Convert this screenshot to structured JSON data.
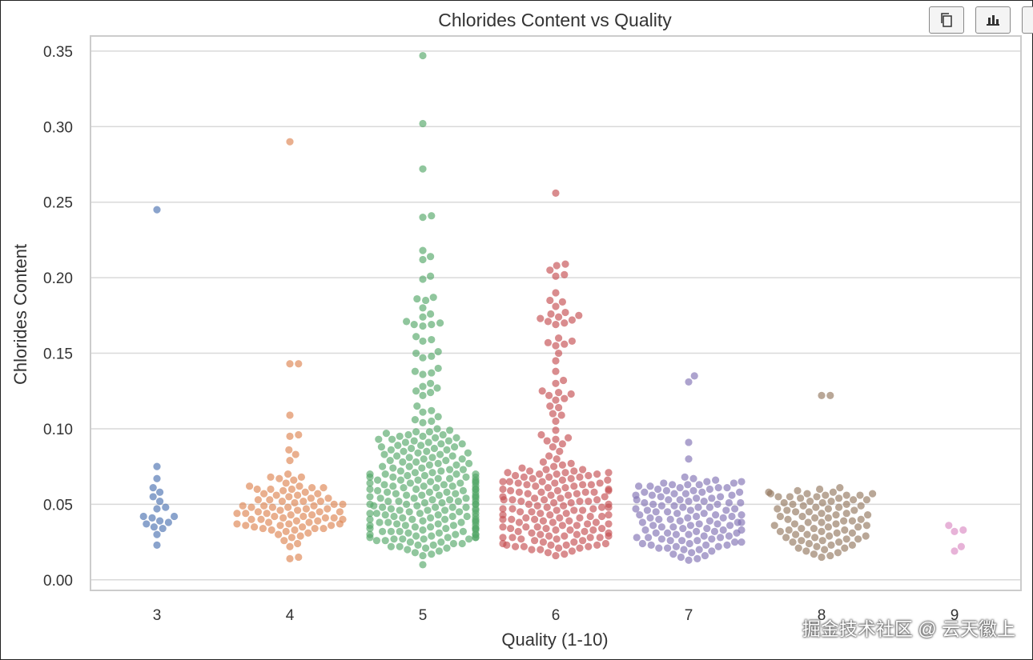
{
  "chart_data": {
    "type": "scatter",
    "subtype": "swarm",
    "title": "Chlorides Content vs Quality",
    "xlabel": "Quality (1-10)",
    "ylabel": "Chlorides Content",
    "categories": [
      "3",
      "4",
      "5",
      "6",
      "7",
      "8",
      "9"
    ],
    "ylim": [
      -0.007,
      0.36
    ],
    "yticks": [
      "0.00",
      "0.05",
      "0.10",
      "0.15",
      "0.20",
      "0.25",
      "0.30",
      "0.35"
    ],
    "grid": true,
    "legend": "none",
    "series": [
      {
        "name": "3",
        "color": "#4c72b0",
        "values": [
          0.245,
          0.075,
          0.067,
          0.061,
          0.058,
          0.055,
          0.052,
          0.048,
          0.047,
          0.042,
          0.042,
          0.041,
          0.039,
          0.038,
          0.037,
          0.035,
          0.034,
          0.03,
          0.023
        ]
      },
      {
        "name": "4",
        "color": "#dd8452",
        "values": [
          0.29,
          0.143,
          0.143,
          0.109,
          0.096,
          0.095,
          0.086,
          0.083,
          0.079,
          0.07,
          0.068,
          0.068,
          0.067,
          0.066,
          0.064,
          0.062,
          0.061,
          0.06,
          0.06,
          0.06,
          0.059,
          0.058,
          0.057,
          0.056,
          0.055,
          0.054,
          0.054,
          0.053,
          0.052,
          0.052,
          0.051,
          0.05,
          0.05,
          0.049,
          0.049,
          0.048,
          0.048,
          0.047,
          0.047,
          0.046,
          0.046,
          0.045,
          0.045,
          0.044,
          0.044,
          0.043,
          0.043,
          0.042,
          0.042,
          0.041,
          0.041,
          0.04,
          0.04,
          0.039,
          0.039,
          0.038,
          0.038,
          0.037,
          0.037,
          0.036,
          0.036,
          0.035,
          0.035,
          0.034,
          0.034,
          0.033,
          0.033,
          0.032,
          0.031,
          0.03,
          0.029,
          0.028,
          0.026,
          0.024,
          0.022,
          0.015,
          0.014,
          0.062,
          0.057,
          0.053,
          0.049,
          0.045,
          0.041,
          0.037,
          0.034,
          0.061,
          0.056,
          0.052,
          0.048,
          0.044,
          0.04,
          0.036
        ]
      },
      {
        "name": "5",
        "color": "#55a868",
        "values": [
          0.347,
          0.302,
          0.272,
          0.241,
          0.24,
          0.218,
          0.214,
          0.212,
          0.201,
          0.199,
          0.187,
          0.186,
          0.185,
          0.18,
          0.176,
          0.174,
          0.171,
          0.17,
          0.169,
          0.169,
          0.168,
          0.161,
          0.159,
          0.158,
          0.151,
          0.15,
          0.148,
          0.147,
          0.14,
          0.138,
          0.137,
          0.136,
          0.13,
          0.128,
          0.127,
          0.125,
          0.124,
          0.122,
          0.115,
          0.112,
          0.111,
          0.108,
          0.106,
          0.105,
          0.104,
          0.1,
          0.099,
          0.098,
          0.098,
          0.097,
          0.096,
          0.096,
          0.095,
          0.095,
          0.094,
          0.094,
          0.093,
          0.093,
          0.092,
          0.092,
          0.091,
          0.091,
          0.09,
          0.09,
          0.089,
          0.089,
          0.088,
          0.088,
          0.087,
          0.087,
          0.086,
          0.086,
          0.085,
          0.085,
          0.084,
          0.084,
          0.083,
          0.083,
          0.082,
          0.082,
          0.081,
          0.081,
          0.08,
          0.08,
          0.079,
          0.079,
          0.078,
          0.078,
          0.077,
          0.077,
          0.076,
          0.076,
          0.075,
          0.075,
          0.074,
          0.074,
          0.073,
          0.073,
          0.072,
          0.072,
          0.071,
          0.071,
          0.07,
          0.07,
          0.069,
          0.069,
          0.068,
          0.068,
          0.067,
          0.067,
          0.066,
          0.066,
          0.065,
          0.065,
          0.064,
          0.064,
          0.063,
          0.063,
          0.062,
          0.062,
          0.061,
          0.061,
          0.06,
          0.06,
          0.059,
          0.059,
          0.058,
          0.058,
          0.057,
          0.057,
          0.056,
          0.056,
          0.055,
          0.055,
          0.054,
          0.054,
          0.053,
          0.053,
          0.052,
          0.052,
          0.051,
          0.051,
          0.05,
          0.05,
          0.049,
          0.049,
          0.048,
          0.048,
          0.047,
          0.047,
          0.046,
          0.046,
          0.045,
          0.045,
          0.044,
          0.044,
          0.043,
          0.043,
          0.042,
          0.042,
          0.041,
          0.041,
          0.04,
          0.04,
          0.039,
          0.039,
          0.038,
          0.038,
          0.037,
          0.037,
          0.036,
          0.036,
          0.035,
          0.035,
          0.034,
          0.034,
          0.033,
          0.033,
          0.032,
          0.032,
          0.031,
          0.031,
          0.03,
          0.03,
          0.029,
          0.029,
          0.028,
          0.028,
          0.027,
          0.027,
          0.026,
          0.026,
          0.025,
          0.025,
          0.024,
          0.024,
          0.023,
          0.023,
          0.022,
          0.022,
          0.021,
          0.021,
          0.02,
          0.019,
          0.018,
          0.017,
          0.016,
          0.01,
          0.07,
          0.066,
          0.062,
          0.058,
          0.054,
          0.05,
          0.046,
          0.042,
          0.038,
          0.034,
          0.03,
          0.027,
          0.068,
          0.064,
          0.06,
          0.056,
          0.052,
          0.048,
          0.044,
          0.04,
          0.036,
          0.032,
          0.028,
          0.07,
          0.066,
          0.062,
          0.058,
          0.054,
          0.05,
          0.046,
          0.042,
          0.038,
          0.034,
          0.03,
          0.027,
          0.068,
          0.064,
          0.06,
          0.056,
          0.052,
          0.048,
          0.044,
          0.04,
          0.036,
          0.032,
          0.028
        ]
      },
      {
        "name": "6",
        "color": "#c44e52",
        "values": [
          0.256,
          0.209,
          0.208,
          0.205,
          0.202,
          0.201,
          0.19,
          0.185,
          0.184,
          0.181,
          0.177,
          0.176,
          0.175,
          0.174,
          0.173,
          0.172,
          0.171,
          0.17,
          0.169,
          0.16,
          0.158,
          0.157,
          0.156,
          0.155,
          0.15,
          0.145,
          0.138,
          0.132,
          0.13,
          0.125,
          0.124,
          0.123,
          0.122,
          0.12,
          0.119,
          0.115,
          0.114,
          0.11,
          0.109,
          0.105,
          0.099,
          0.096,
          0.094,
          0.093,
          0.092,
          0.09,
          0.088,
          0.085,
          0.082,
          0.08,
          0.078,
          0.077,
          0.076,
          0.075,
          0.074,
          0.073,
          0.072,
          0.071,
          0.07,
          0.069,
          0.068,
          0.067,
          0.066,
          0.065,
          0.064,
          0.063,
          0.062,
          0.061,
          0.06,
          0.059,
          0.058,
          0.057,
          0.056,
          0.055,
          0.054,
          0.053,
          0.052,
          0.051,
          0.05,
          0.049,
          0.048,
          0.047,
          0.046,
          0.045,
          0.044,
          0.043,
          0.042,
          0.041,
          0.04,
          0.039,
          0.038,
          0.037,
          0.036,
          0.035,
          0.034,
          0.033,
          0.032,
          0.031,
          0.03,
          0.029,
          0.028,
          0.027,
          0.026,
          0.025,
          0.024,
          0.023,
          0.022,
          0.021,
          0.02,
          0.019,
          0.018,
          0.017,
          0.016,
          0.072,
          0.068,
          0.064,
          0.06,
          0.056,
          0.052,
          0.048,
          0.044,
          0.04,
          0.036,
          0.032,
          0.028,
          0.024,
          0.02,
          0.07,
          0.066,
          0.062,
          0.058,
          0.054,
          0.05,
          0.046,
          0.042,
          0.038,
          0.034,
          0.03,
          0.026,
          0.022,
          0.071,
          0.067,
          0.063,
          0.059,
          0.055,
          0.051,
          0.047,
          0.043,
          0.039,
          0.035,
          0.031,
          0.027,
          0.023,
          0.069,
          0.065,
          0.061,
          0.057,
          0.053,
          0.049,
          0.045,
          0.041,
          0.037,
          0.033,
          0.029,
          0.025,
          0.021,
          0.073,
          0.068,
          0.063,
          0.058,
          0.053,
          0.048,
          0.043,
          0.038,
          0.033,
          0.028,
          0.023,
          0.07,
          0.064,
          0.058,
          0.052,
          0.046,
          0.04,
          0.034,
          0.028,
          0.022,
          0.071,
          0.065,
          0.059,
          0.053,
          0.047,
          0.041,
          0.035,
          0.029,
          0.023
        ]
      },
      {
        "name": "7",
        "color": "#8172b3",
        "values": [
          0.135,
          0.131,
          0.091,
          0.08,
          0.068,
          0.067,
          0.066,
          0.065,
          0.064,
          0.063,
          0.062,
          0.061,
          0.06,
          0.059,
          0.058,
          0.057,
          0.056,
          0.055,
          0.054,
          0.053,
          0.052,
          0.051,
          0.05,
          0.049,
          0.048,
          0.047,
          0.046,
          0.045,
          0.044,
          0.043,
          0.042,
          0.041,
          0.04,
          0.039,
          0.038,
          0.037,
          0.036,
          0.035,
          0.034,
          0.033,
          0.032,
          0.031,
          0.03,
          0.029,
          0.028,
          0.027,
          0.026,
          0.025,
          0.024,
          0.023,
          0.022,
          0.021,
          0.02,
          0.019,
          0.018,
          0.017,
          0.016,
          0.015,
          0.014,
          0.013,
          0.065,
          0.061,
          0.057,
          0.053,
          0.049,
          0.045,
          0.041,
          0.037,
          0.033,
          0.029,
          0.025,
          0.021,
          0.063,
          0.059,
          0.055,
          0.051,
          0.047,
          0.043,
          0.039,
          0.035,
          0.031,
          0.027,
          0.023,
          0.064,
          0.06,
          0.056,
          0.052,
          0.048,
          0.044,
          0.04,
          0.036,
          0.032,
          0.028,
          0.024,
          0.02,
          0.062,
          0.058,
          0.054,
          0.05,
          0.046,
          0.042,
          0.038,
          0.034,
          0.03,
          0.026,
          0.022,
          0.063,
          0.058,
          0.053,
          0.048,
          0.043,
          0.038,
          0.033,
          0.028,
          0.023,
          0.061,
          0.056,
          0.051,
          0.046,
          0.041,
          0.036,
          0.031,
          0.026
        ]
      },
      {
        "name": "8",
        "color": "#937860",
        "values": [
          0.122,
          0.122,
          0.061,
          0.06,
          0.059,
          0.058,
          0.057,
          0.057,
          0.056,
          0.056,
          0.055,
          0.055,
          0.054,
          0.053,
          0.052,
          0.051,
          0.05,
          0.049,
          0.048,
          0.047,
          0.046,
          0.045,
          0.044,
          0.043,
          0.042,
          0.041,
          0.04,
          0.039,
          0.038,
          0.037,
          0.036,
          0.035,
          0.034,
          0.033,
          0.032,
          0.031,
          0.03,
          0.029,
          0.028,
          0.027,
          0.026,
          0.025,
          0.024,
          0.023,
          0.022,
          0.021,
          0.02,
          0.019,
          0.018,
          0.017,
          0.016,
          0.015,
          0.057,
          0.053,
          0.049,
          0.045,
          0.041,
          0.037,
          0.033,
          0.029,
          0.025,
          0.021,
          0.055,
          0.051,
          0.047,
          0.043,
          0.039,
          0.035,
          0.031,
          0.027,
          0.023,
          0.056,
          0.052,
          0.048,
          0.044,
          0.04,
          0.036,
          0.032,
          0.028,
          0.058,
          0.054,
          0.05,
          0.046,
          0.042,
          0.038,
          0.034,
          0.03,
          0.026
        ]
      },
      {
        "name": "9",
        "color": "#da8bc3",
        "values": [
          0.036,
          0.033,
          0.032,
          0.022,
          0.019
        ]
      }
    ]
  },
  "toolbar": {
    "buttons": [
      {
        "name": "copy",
        "icon": "copy-icon"
      },
      {
        "name": "chart",
        "icon": "bar-chart-icon"
      }
    ]
  },
  "watermark": "掘金技术社区 @ 云天徽上"
}
